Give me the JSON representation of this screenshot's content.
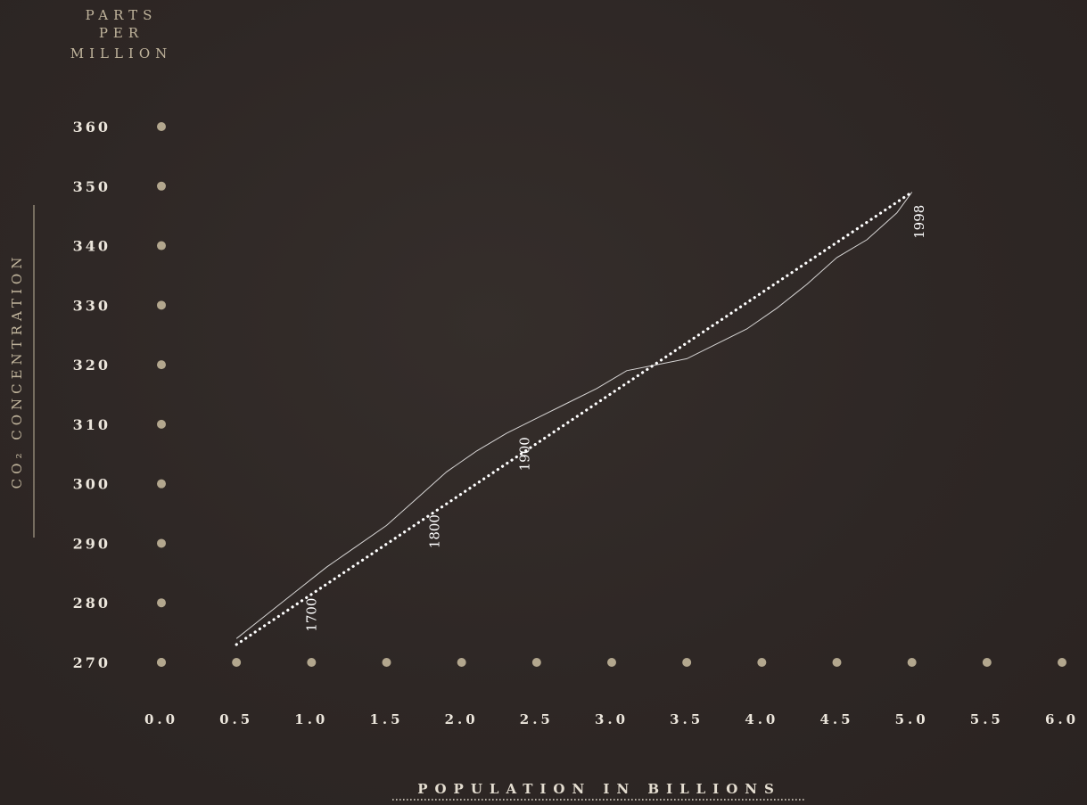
{
  "chart_data": {
    "type": "line",
    "y_unit_label": [
      "PARTS",
      "PER",
      "MILLION"
    ],
    "ylabel": "CO₂ CONCENTRATION",
    "xlabel": "POPULATION IN BILLIONS",
    "x_ticks": [
      "0.0",
      "0.5",
      "1.0",
      "1.5",
      "2.0",
      "2.5",
      "3.0",
      "3.5",
      "4.0",
      "4.5",
      "5.0",
      "5.5",
      "6.0"
    ],
    "y_ticks": [
      "270",
      "280",
      "290",
      "300",
      "310",
      "320",
      "330",
      "340",
      "350",
      "360"
    ],
    "xlim": [
      0,
      6
    ],
    "ylim": [
      270,
      360
    ],
    "grid": false,
    "series": [
      {
        "style": "solid",
        "x": [
          0.5,
          0.7,
          0.9,
          1.1,
          1.3,
          1.5,
          1.7,
          1.9,
          2.1,
          2.3,
          2.5,
          2.7,
          2.9,
          3.1,
          3.3,
          3.5,
          3.7,
          3.9,
          4.1,
          4.3,
          4.5,
          4.7,
          4.9,
          5.0
        ],
        "y": [
          274,
          278,
          282,
          286,
          289.5,
          293,
          297.5,
          302,
          305.5,
          308.5,
          311,
          313.5,
          316,
          319,
          320,
          321,
          323.5,
          326,
          329.5,
          333.5,
          338,
          341,
          345.5,
          349
        ]
      },
      {
        "style": "dotted",
        "x": [
          0.5,
          5.0
        ],
        "y": [
          273,
          349
        ]
      }
    ],
    "annotations": [
      {
        "text": "1700",
        "x": 1.0,
        "y": 278
      },
      {
        "text": "1800",
        "x": 1.82,
        "y": 292
      },
      {
        "text": "1900",
        "x": 2.42,
        "y": 305
      },
      {
        "text": "1998",
        "x": 5.05,
        "y": 344
      }
    ],
    "colors": {
      "background": "#2e2725",
      "tick_dot": "#b3a78e",
      "tick_label": "#ece6dc",
      "axis_title": "#c0b49c",
      "line": "#ffffff",
      "annotation": "#ffffff"
    }
  }
}
